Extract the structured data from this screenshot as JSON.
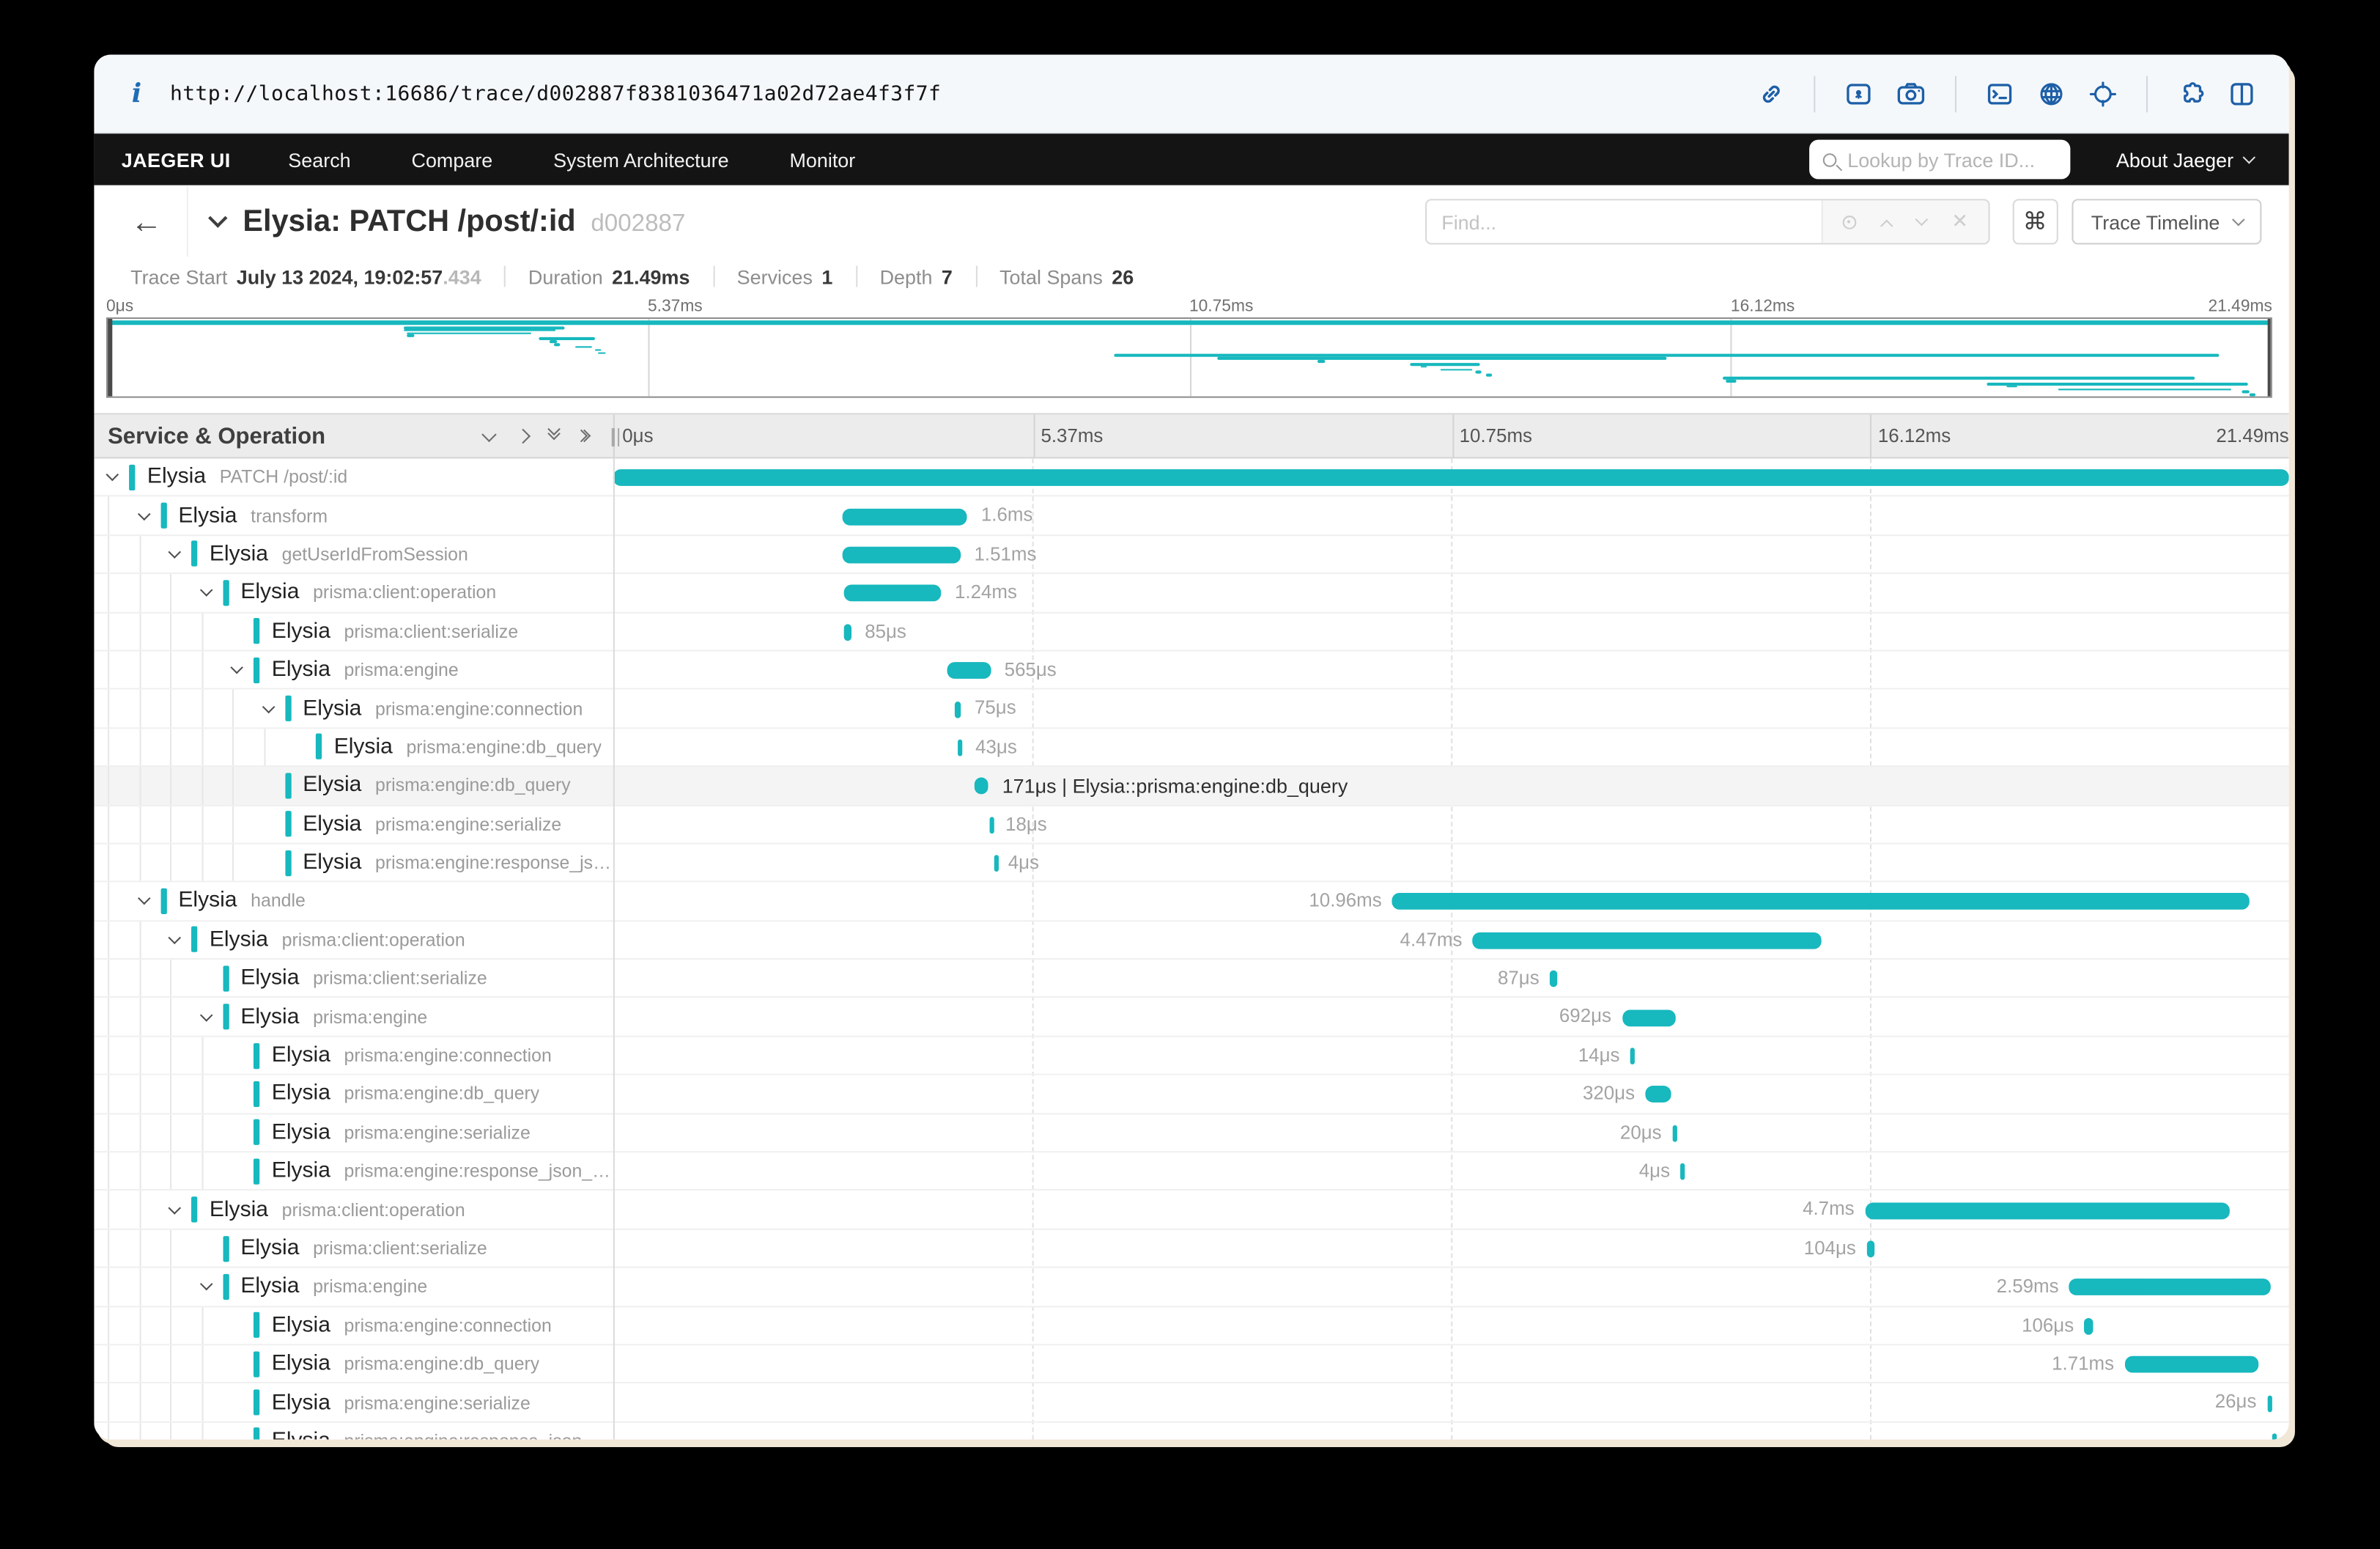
{
  "browser": {
    "url": "http://localhost:16686/trace/d002887f8381036471a02d72ae4f3f7f",
    "icons": [
      "link-icon",
      "image-icon",
      "camera-icon",
      "terminal-icon",
      "globe-icon",
      "target-icon",
      "puzzle-icon",
      "split-view-icon"
    ]
  },
  "nav": {
    "brand": "JAEGER UI",
    "items": [
      "Search",
      "Compare",
      "System Architecture",
      "Monitor"
    ],
    "lookup_placeholder": "Lookup by Trace ID...",
    "about_label": "About Jaeger"
  },
  "trace_header": {
    "title": "Elysia: PATCH /post/:id",
    "trace_id": "d002887",
    "find_placeholder": "Find...",
    "shortcut_key": "⌘",
    "view_label": "Trace Timeline"
  },
  "summary": {
    "items": [
      {
        "label": "Trace Start",
        "value": "July 13 2024, 19:02:57",
        "suffix": ".434"
      },
      {
        "label": "Duration",
        "value": "21.49ms",
        "suffix": ""
      },
      {
        "label": "Services",
        "value": "1",
        "suffix": ""
      },
      {
        "label": "Depth",
        "value": "7",
        "suffix": ""
      },
      {
        "label": "Total Spans",
        "value": "26",
        "suffix": ""
      }
    ]
  },
  "timeline": {
    "left_header": "Service & Operation",
    "ticks": [
      "0μs",
      "5.37ms",
      "10.75ms",
      "16.12ms",
      "21.49ms"
    ],
    "accent_color": "#17b8be"
  },
  "spans": [
    {
      "depth": 0,
      "service": "Elysia",
      "operation": "PATCH /post/:id",
      "expandable": true,
      "start": 0,
      "width": 100,
      "label": "",
      "side": "right",
      "hl": false
    },
    {
      "depth": 1,
      "service": "Elysia",
      "operation": "transform",
      "expandable": true,
      "start": 13.7,
      "width": 7.44,
      "label": "1.6ms",
      "side": "right",
      "hl": false
    },
    {
      "depth": 2,
      "service": "Elysia",
      "operation": "getUserIdFromSession",
      "expandable": true,
      "start": 13.7,
      "width": 7.03,
      "label": "1.51ms",
      "side": "right",
      "hl": false
    },
    {
      "depth": 3,
      "service": "Elysia",
      "operation": "prisma:client:operation",
      "expandable": true,
      "start": 13.8,
      "width": 5.77,
      "label": "1.24ms",
      "side": "right",
      "hl": false
    },
    {
      "depth": 4,
      "service": "Elysia",
      "operation": "prisma:client:serialize",
      "expandable": false,
      "start": 13.8,
      "width": 0.4,
      "label": "85μs",
      "side": "right",
      "hl": false
    },
    {
      "depth": 4,
      "service": "Elysia",
      "operation": "prisma:engine",
      "expandable": true,
      "start": 19.9,
      "width": 2.63,
      "label": "565μs",
      "side": "right",
      "hl": false
    },
    {
      "depth": 5,
      "service": "Elysia",
      "operation": "prisma:engine:connection",
      "expandable": true,
      "start": 20.4,
      "width": 0.35,
      "label": "75μs",
      "side": "right",
      "hl": false
    },
    {
      "depth": 6,
      "service": "Elysia",
      "operation": "prisma:engine:db_query",
      "expandable": false,
      "start": 20.6,
      "width": 0.2,
      "label": "43μs",
      "side": "right",
      "hl": false
    },
    {
      "depth": 5,
      "service": "Elysia",
      "operation": "prisma:engine:db_query",
      "expandable": false,
      "start": 21.6,
      "width": 0.8,
      "label": "171μs | Elysia::prisma:engine:db_query",
      "side": "right",
      "hl": true
    },
    {
      "depth": 5,
      "service": "Elysia",
      "operation": "prisma:engine:serialize",
      "expandable": false,
      "start": 22.5,
      "width": 0.09,
      "label": "18μs",
      "side": "right",
      "hl": false
    },
    {
      "depth": 5,
      "service": "Elysia",
      "operation": "prisma:engine:response_json_serialization",
      "expandable": false,
      "start": 22.7,
      "width": 0.05,
      "label": "4μs",
      "side": "right",
      "hl": false
    },
    {
      "depth": 1,
      "service": "Elysia",
      "operation": "handle",
      "expandable": true,
      "start": 46.5,
      "width": 51.1,
      "label": "10.96ms",
      "side": "left",
      "hl": false
    },
    {
      "depth": 2,
      "service": "Elysia",
      "operation": "prisma:client:operation",
      "expandable": true,
      "start": 51.3,
      "width": 20.8,
      "label": "4.47ms",
      "side": "left",
      "hl": false
    },
    {
      "depth": 3,
      "service": "Elysia",
      "operation": "prisma:client:serialize",
      "expandable": false,
      "start": 55.9,
      "width": 0.41,
      "label": "87μs",
      "side": "left",
      "hl": false
    },
    {
      "depth": 3,
      "service": "Elysia",
      "operation": "prisma:engine",
      "expandable": true,
      "start": 60.2,
      "width": 3.22,
      "label": "692μs",
      "side": "left",
      "hl": false
    },
    {
      "depth": 4,
      "service": "Elysia",
      "operation": "prisma:engine:connection",
      "expandable": false,
      "start": 60.7,
      "width": 0.07,
      "label": "14μs",
      "side": "left",
      "hl": false
    },
    {
      "depth": 4,
      "service": "Elysia",
      "operation": "prisma:engine:db_query",
      "expandable": false,
      "start": 61.6,
      "width": 1.49,
      "label": "320μs",
      "side": "left",
      "hl": false
    },
    {
      "depth": 4,
      "service": "Elysia",
      "operation": "prisma:engine:serialize",
      "expandable": false,
      "start": 63.2,
      "width": 0.1,
      "label": "20μs",
      "side": "left",
      "hl": false
    },
    {
      "depth": 4,
      "service": "Elysia",
      "operation": "prisma:engine:response_json_serialization",
      "expandable": false,
      "start": 63.7,
      "width": 0.03,
      "label": "4μs",
      "side": "left",
      "hl": false
    },
    {
      "depth": 2,
      "service": "Elysia",
      "operation": "prisma:client:operation",
      "expandable": true,
      "start": 74.7,
      "width": 21.8,
      "label": "4.7ms",
      "side": "left",
      "hl": false
    },
    {
      "depth": 3,
      "service": "Elysia",
      "operation": "prisma:client:serialize",
      "expandable": false,
      "start": 74.8,
      "width": 0.48,
      "label": "104μs",
      "side": "left",
      "hl": false
    },
    {
      "depth": 3,
      "service": "Elysia",
      "operation": "prisma:engine",
      "expandable": true,
      "start": 86.9,
      "width": 12.05,
      "label": "2.59ms",
      "side": "left",
      "hl": false
    },
    {
      "depth": 4,
      "service": "Elysia",
      "operation": "prisma:engine:connection",
      "expandable": false,
      "start": 87.8,
      "width": 0.49,
      "label": "106μs",
      "side": "left",
      "hl": false
    },
    {
      "depth": 4,
      "service": "Elysia",
      "operation": "prisma:engine:db_query",
      "expandable": false,
      "start": 90.2,
      "width": 7.96,
      "label": "1.71ms",
      "side": "left",
      "hl": false
    },
    {
      "depth": 4,
      "service": "Elysia",
      "operation": "prisma:engine:serialize",
      "expandable": false,
      "start": 98.7,
      "width": 0.12,
      "label": "26μs",
      "side": "left",
      "hl": false
    },
    {
      "depth": 4,
      "service": "Elysia",
      "operation": "prisma:engine:response_json_serialization",
      "expandable": false,
      "start": 99.0,
      "width": 0.03,
      "label": "",
      "side": "left",
      "hl": false
    }
  ]
}
